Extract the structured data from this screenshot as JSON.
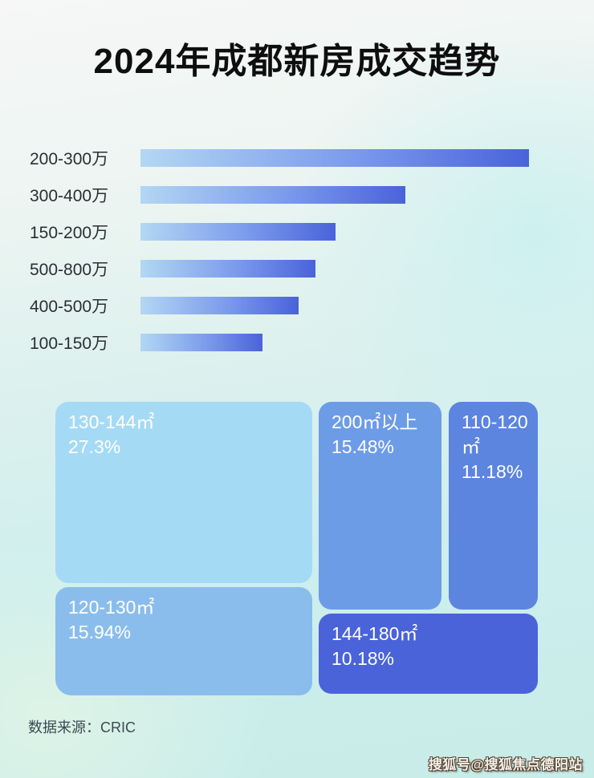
{
  "title": "2024年成都新房成交趋势",
  "bar_chart": {
    "rows": [
      {
        "label": "200-300万",
        "length_pct": 100
      },
      {
        "label": "300-400万",
        "length_pct": 68.2
      },
      {
        "label": "150-200万",
        "length_pct": 50.2
      },
      {
        "label": "500-800万",
        "length_pct": 45.0
      },
      {
        "label": "400-500万",
        "length_pct": 40.7
      },
      {
        "label": "100-150万",
        "length_pct": 31.4
      }
    ]
  },
  "treemap": {
    "blocks": [
      {
        "label": "130-144㎡",
        "value": "27.3%",
        "color": "#a5daf5"
      },
      {
        "label": "120-130㎡",
        "value": "15.94%",
        "color": "#8bbdec"
      },
      {
        "label": "200㎡以上",
        "value": "15.48%",
        "color": "#6d9ce7"
      },
      {
        "label": "110-120㎡",
        "value": "11.18%",
        "color": "#5c85e0"
      },
      {
        "label": "144-180㎡",
        "value": "10.18%",
        "color": "#4a63d9"
      }
    ]
  },
  "source": "数据来源：CRIC",
  "watermark": "搜狐号@搜狐焦点德阳站",
  "colors": {
    "bar_gradient_start": "#b3d7f3",
    "bar_gradient_end": "#4a63da",
    "title_text": "#0e0e0e",
    "treemap_text": "#ffffff",
    "background_top": "#f6f7f6",
    "background_bottom": "#c8ece8"
  },
  "chart_data": [
    {
      "type": "bar",
      "orientation": "horizontal",
      "title": "2024年成都新房成交趋势",
      "categories": [
        "200-300万",
        "300-400万",
        "150-200万",
        "500-800万",
        "400-500万",
        "100-150万"
      ],
      "values_relative_pct_of_max": [
        100,
        68.2,
        50.2,
        45.0,
        40.7,
        31.4
      ],
      "note": "no numeric axis or data labels shown; bar lengths estimated from pixels",
      "xlabel": "",
      "ylabel": "",
      "grid": false,
      "legend": false
    },
    {
      "type": "heatmap",
      "subtype": "treemap",
      "categories": [
        "130-144㎡",
        "200㎡以上",
        "120-130㎡",
        "110-120㎡",
        "144-180㎡"
      ],
      "values": [
        27.3,
        15.48,
        15.94,
        11.18,
        10.18
      ],
      "units": "%",
      "legend": false
    }
  ]
}
